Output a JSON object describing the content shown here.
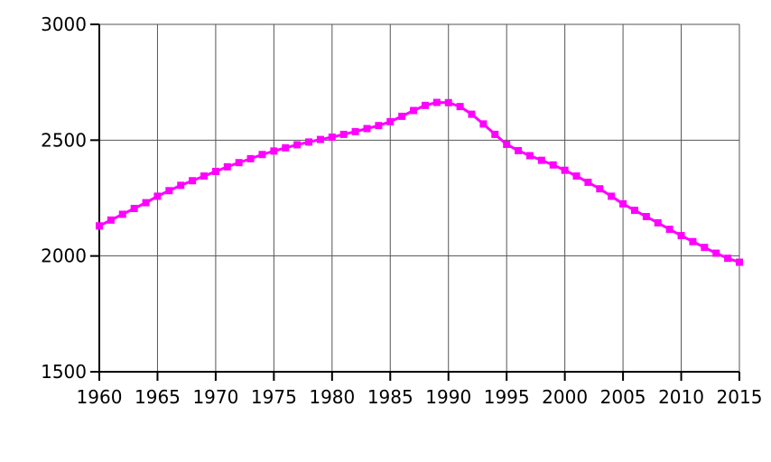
{
  "chart_data": {
    "type": "line",
    "x": [
      1960,
      1961,
      1962,
      1963,
      1964,
      1965,
      1966,
      1967,
      1968,
      1969,
      1970,
      1971,
      1972,
      1973,
      1974,
      1975,
      1976,
      1977,
      1978,
      1979,
      1980,
      1981,
      1982,
      1983,
      1984,
      1985,
      1986,
      1987,
      1988,
      1989,
      1990,
      1991,
      1992,
      1993,
      1994,
      1995,
      1996,
      1997,
      1998,
      1999,
      2000,
      2001,
      2002,
      2003,
      2004,
      2005,
      2006,
      2007,
      2008,
      2009,
      2010,
      2011,
      2012,
      2013,
      2014,
      2015
    ],
    "series": [
      {
        "color": "#ff00ff",
        "values": [
          2130,
          2155,
          2180,
          2205,
          2230,
          2258,
          2282,
          2305,
          2325,
          2345,
          2365,
          2385,
          2403,
          2420,
          2438,
          2453,
          2467,
          2480,
          2492,
          2503,
          2513,
          2525,
          2537,
          2550,
          2563,
          2580,
          2603,
          2628,
          2650,
          2663,
          2662,
          2645,
          2612,
          2570,
          2525,
          2482,
          2455,
          2433,
          2413,
          2393,
          2370,
          2345,
          2318,
          2290,
          2258,
          2225,
          2197,
          2170,
          2143,
          2115,
          2088,
          2062,
          2037,
          2012,
          1990,
          1973
        ]
      }
    ],
    "xlim": [
      1960,
      2015
    ],
    "xticks": [
      1960,
      1965,
      1970,
      1975,
      1980,
      1985,
      1990,
      1995,
      2000,
      2005,
      2010,
      2015
    ],
    "ylim": [
      1500,
      3000
    ],
    "yticks": [
      1500,
      2000,
      2500,
      3000
    ],
    "grid": true
  }
}
